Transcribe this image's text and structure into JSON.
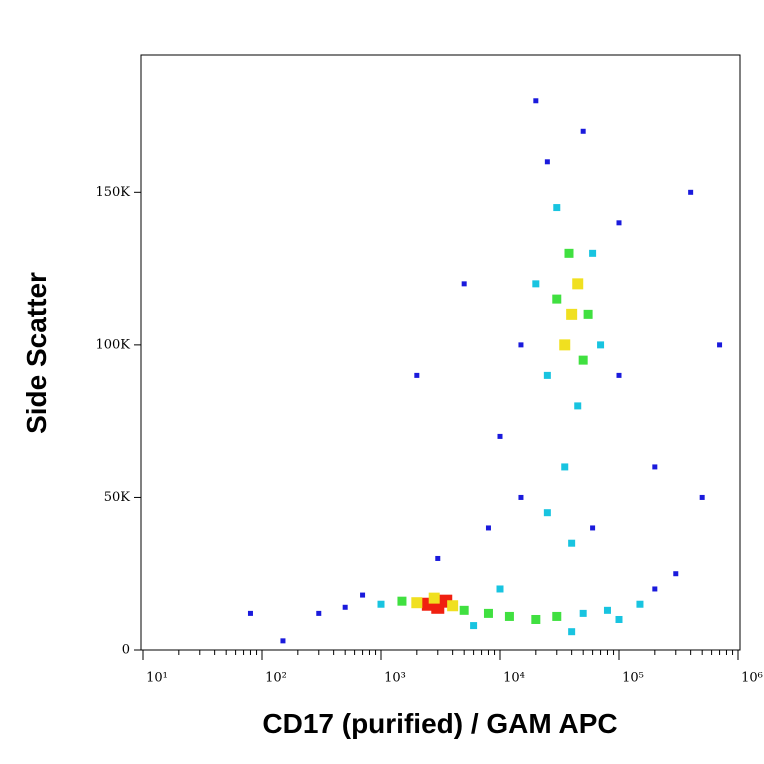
{
  "chart_data": {
    "type": "density",
    "x_label": "CD17 (purified) / GAM APC",
    "y_label": "Side Scatter",
    "xscale": "log",
    "xlim": [
      10,
      1000000
    ],
    "xticks": [
      {
        "value": 10,
        "label": "10¹"
      },
      {
        "value": 100,
        "label": "10²"
      },
      {
        "value": 1000,
        "label": "10³"
      },
      {
        "value": 10000,
        "label": "10⁴"
      },
      {
        "value": 100000,
        "label": "10⁵"
      },
      {
        "value": 1000000,
        "label": "10⁶"
      }
    ],
    "ylim": [
      0,
      195000
    ],
    "yticks": [
      0,
      {
        "value": 50000,
        "label": "50K"
      },
      {
        "value": 100000,
        "label": "100K"
      },
      {
        "value": 150000,
        "label": "150K"
      }
    ],
    "colormap": [
      "#1a1adc",
      "#18c4e0",
      "#40e040",
      "#f0e020",
      "#f02010"
    ],
    "x": [
      2500,
      3000,
      3500,
      2800,
      4000,
      2000,
      5000,
      1500,
      8000,
      12000,
      20000,
      30000,
      50000,
      80000,
      100000,
      150000,
      200000,
      1000,
      700,
      500,
      300,
      150,
      80,
      6000,
      10000,
      40000,
      300000,
      40000,
      35000,
      45000,
      30000,
      50000,
      38000,
      55000,
      25000,
      60000,
      20000,
      70000,
      45000,
      30000,
      25000,
      50000,
      15000,
      100000,
      100000,
      10000,
      5000,
      2000,
      20000,
      35000,
      25000,
      40000,
      15000,
      60000,
      200000,
      500000,
      8000,
      3000,
      400000,
      700000
    ],
    "y": [
      15000,
      14000,
      16000,
      17000,
      14500,
      15500,
      13000,
      16000,
      12000,
      11000,
      10000,
      11000,
      12000,
      13000,
      10000,
      15000,
      20000,
      15000,
      18000,
      14000,
      12000,
      3000,
      12000,
      8000,
      20000,
      6000,
      25000,
      110000,
      100000,
      120000,
      115000,
      95000,
      130000,
      110000,
      90000,
      130000,
      120000,
      100000,
      80000,
      145000,
      160000,
      170000,
      100000,
      90000,
      140000,
      70000,
      120000,
      90000,
      180000,
      60000,
      45000,
      35000,
      50000,
      40000,
      60000,
      50000,
      40000,
      30000,
      150000,
      100000
    ],
    "density": [
      4,
      4,
      4,
      3,
      3,
      3,
      2,
      2,
      2,
      2,
      2,
      2,
      1,
      1,
      1,
      1,
      0,
      1,
      0,
      0,
      0,
      0,
      0,
      1,
      1,
      1,
      0,
      3,
      3,
      3,
      2,
      2,
      2,
      2,
      1,
      1,
      1,
      1,
      1,
      1,
      0,
      0,
      0,
      0,
      0,
      0,
      0,
      0,
      0,
      1,
      1,
      1,
      0,
      0,
      0,
      0,
      0,
      0,
      0,
      0
    ]
  }
}
